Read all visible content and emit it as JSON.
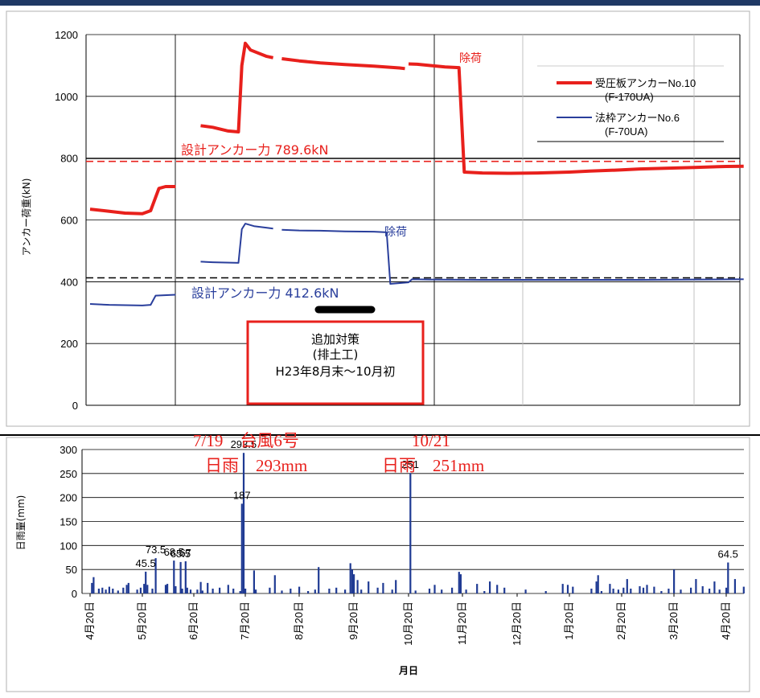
{
  "chart_data": [
    {
      "type": "line",
      "title": "",
      "xlabel": "",
      "ylabel": "アンカー荷重(kN)",
      "ylim": [
        0,
        1200
      ],
      "yticks": [
        0,
        200,
        400,
        600,
        800,
        1000,
        1200
      ],
      "grid": true,
      "legend_position": "top-right",
      "series": [
        {
          "name": "受圧板アンカーNo.10",
          "name_sub": "(F-170UA)",
          "color": "#e8201c",
          "segments": [
            [
              [
                "04-20",
                635
              ],
              [
                "05-01",
                628
              ],
              [
                "05-10",
                622
              ],
              [
                "05-20",
                620
              ],
              [
                "05-25",
                630
              ],
              [
                "05-30",
                702
              ],
              [
                "06-03",
                708
              ],
              [
                "06-09",
                708
              ]
            ],
            [
              [
                "06-24",
                905
              ],
              [
                "07-01",
                900
              ],
              [
                "07-10",
                888
              ],
              [
                "07-16",
                885
              ],
              [
                "07-18",
                1100
              ],
              [
                "07-20",
                1172
              ],
              [
                "07-23",
                1150
              ],
              [
                "08-01",
                1130
              ],
              [
                "08-05",
                1125
              ]
            ],
            [
              [
                "08-10",
                1122
              ],
              [
                "08-20",
                1115
              ],
              [
                "09-01",
                1108
              ],
              [
                "09-15",
                1103
              ],
              [
                "10-01",
                1098
              ],
              [
                "10-15",
                1092
              ],
              [
                "10-18",
                1090
              ]
            ],
            [
              [
                "10-20",
                1105
              ],
              [
                "10-25",
                1104
              ],
              [
                "11-01",
                1100
              ],
              [
                "11-10",
                1095
              ],
              [
                "11-18",
                1093
              ],
              [
                "11-21",
                755
              ],
              [
                "12-01",
                752
              ],
              [
                "12-15",
                751
              ],
              [
                "01-01",
                752
              ],
              [
                "01-20",
                755
              ],
              [
                "02-01",
                758
              ],
              [
                "02-20",
                762
              ],
              [
                "03-01",
                765
              ],
              [
                "03-15",
                767
              ],
              [
                "04-01",
                770
              ],
              [
                "04-20",
                773
              ],
              [
                "04-30",
                774
              ]
            ]
          ]
        },
        {
          "name": "法枠アンカーNo.6",
          "name_sub": "(F-70UA)",
          "color": "#2a3f9c",
          "segments": [
            [
              [
                "04-20",
                328
              ],
              [
                "05-01",
                325
              ],
              [
                "05-20",
                323
              ],
              [
                "05-25",
                325
              ],
              [
                "05-28",
                355
              ],
              [
                "06-09",
                358
              ]
            ],
            [
              [
                "06-24",
                465
              ],
              [
                "07-01",
                463
              ],
              [
                "07-16",
                461
              ],
              [
                "07-18",
                570
              ],
              [
                "07-20",
                588
              ],
              [
                "07-25",
                580
              ],
              [
                "08-01",
                575
              ],
              [
                "08-05",
                572
              ]
            ],
            [
              [
                "08-10",
                568
              ],
              [
                "08-20",
                566
              ],
              [
                "09-01",
                565
              ],
              [
                "09-15",
                563
              ],
              [
                "10-01",
                562
              ],
              [
                "10-08",
                560
              ],
              [
                "10-10",
                393
              ],
              [
                "10-20",
                398
              ],
              [
                "10-22",
                408
              ],
              [
                "11-01",
                407
              ],
              [
                "12-01",
                406
              ],
              [
                "01-01",
                406
              ],
              [
                "02-01",
                406
              ],
              [
                "03-01",
                406
              ],
              [
                "04-01",
                407
              ],
              [
                "04-30",
                408
              ]
            ]
          ]
        }
      ],
      "reference_lines": [
        {
          "label": "設計アンカー力 789.6kN",
          "value": 789.6,
          "color": "#e8201c"
        },
        {
          "label": "設計アンカー力 412.6kN",
          "value": 412.6,
          "color": "#2a3f9c"
        }
      ],
      "annotations": {
        "unload_red": "除荷",
        "unload_blue": "除荷",
        "countermeasure": [
          "追加対策",
          "(排土工)",
          "H23年8月末～10月初"
        ]
      }
    },
    {
      "type": "bar",
      "title": "",
      "xlabel": "月日",
      "ylabel": "日雨量(mm)",
      "ylim": [
        0,
        300
      ],
      "yticks": [
        0,
        50,
        100,
        150,
        200,
        250,
        300
      ],
      "grid": true,
      "x_tick_labels": [
        "4月20日",
        "5月20日",
        "6月20日",
        "7月20日",
        "8月20日",
        "9月20日",
        "10月20日",
        "11月20日",
        "12月20日",
        "1月20日",
        "2月20日",
        "3月20日",
        "4月20日"
      ],
      "bars": [
        [
          "04-21",
          22
        ],
        [
          "04-22",
          34
        ],
        [
          "04-25",
          10
        ],
        [
          "04-27",
          12
        ],
        [
          "04-29",
          8
        ],
        [
          "05-01",
          14
        ],
        [
          "05-03",
          10
        ],
        [
          "05-06",
          6
        ],
        [
          "05-09",
          12
        ],
        [
          "05-11",
          18
        ],
        [
          "05-12",
          22
        ],
        [
          "05-17",
          8
        ],
        [
          "05-19",
          12
        ],
        [
          "05-21",
          20
        ],
        [
          "05-22",
          45.5
        ],
        [
          "05-23",
          18
        ],
        [
          "05-26",
          10
        ],
        [
          "05-28",
          73.5
        ],
        [
          "06-03",
          18
        ],
        [
          "06-04",
          20
        ],
        [
          "06-08",
          68.5
        ],
        [
          "06-09",
          15
        ],
        [
          "06-12",
          65.5
        ],
        [
          "06-13",
          10
        ],
        [
          "06-15",
          67
        ],
        [
          "06-16",
          12
        ],
        [
          "06-18",
          8
        ],
        [
          "06-22",
          8
        ],
        [
          "06-24",
          24
        ],
        [
          "06-25",
          6
        ],
        [
          "06-28",
          22
        ],
        [
          "07-01",
          10
        ],
        [
          "07-05",
          12
        ],
        [
          "07-10",
          18
        ],
        [
          "07-13",
          10
        ],
        [
          "07-17",
          5
        ],
        [
          "07-18",
          187
        ],
        [
          "07-19",
          293
        ],
        [
          "07-20",
          10
        ],
        [
          "07-25",
          48
        ],
        [
          "07-26",
          8
        ],
        [
          "08-03",
          12
        ],
        [
          "08-06",
          38
        ],
        [
          "08-10",
          6
        ],
        [
          "08-15",
          10
        ],
        [
          "08-20",
          14
        ],
        [
          "08-25",
          5
        ],
        [
          "08-29",
          8
        ],
        [
          "08-31",
          55
        ],
        [
          "09-06",
          10
        ],
        [
          "09-10",
          12
        ],
        [
          "09-15",
          8
        ],
        [
          "09-18",
          63
        ],
        [
          "09-19",
          50
        ],
        [
          "09-20",
          40
        ],
        [
          "09-22",
          28
        ],
        [
          "09-24",
          8
        ],
        [
          "09-28",
          25
        ],
        [
          "10-03",
          12
        ],
        [
          "10-06",
          22
        ],
        [
          "10-11",
          8
        ],
        [
          "10-13",
          28
        ],
        [
          "10-21",
          251
        ],
        [
          "10-24",
          6
        ],
        [
          "11-01",
          10
        ],
        [
          "11-04",
          18
        ],
        [
          "11-08",
          8
        ],
        [
          "11-14",
          12
        ],
        [
          "11-18",
          45
        ],
        [
          "11-19",
          40
        ],
        [
          "11-22",
          8
        ],
        [
          "11-28",
          20
        ],
        [
          "12-02",
          5
        ],
        [
          "12-05",
          25
        ],
        [
          "12-09",
          18
        ],
        [
          "12-13",
          12
        ],
        [
          "12-25",
          8
        ],
        [
          "01-06",
          5
        ],
        [
          "01-16",
          20
        ],
        [
          "01-19",
          18
        ],
        [
          "01-22",
          14
        ],
        [
          "02-02",
          10
        ],
        [
          "02-05",
          25
        ],
        [
          "02-06",
          38
        ],
        [
          "02-08",
          5
        ],
        [
          "02-13",
          20
        ],
        [
          "02-15",
          10
        ],
        [
          "02-18",
          8
        ],
        [
          "02-21",
          12
        ],
        [
          "02-23",
          30
        ],
        [
          "02-25",
          10
        ],
        [
          "03-01",
          15
        ],
        [
          "03-03",
          12
        ],
        [
          "03-05",
          18
        ],
        [
          "03-09",
          14
        ],
        [
          "03-13",
          5
        ],
        [
          "03-17",
          10
        ],
        [
          "03-20",
          50
        ],
        [
          "03-24",
          8
        ],
        [
          "03-30",
          12
        ],
        [
          "04-02",
          30
        ],
        [
          "04-06",
          15
        ],
        [
          "04-10",
          10
        ],
        [
          "04-13",
          25
        ],
        [
          "04-16",
          8
        ],
        [
          "04-20",
          12
        ],
        [
          "04-21",
          64.5
        ],
        [
          "04-25",
          30
        ],
        [
          "04-30",
          14
        ]
      ],
      "data_labels": [
        {
          "date": "05-22",
          "text": "45.5"
        },
        {
          "date": "05-28",
          "text": "73.5"
        },
        {
          "date": "06-08",
          "text": "68.5"
        },
        {
          "date": "06-12",
          "text": "65.5"
        },
        {
          "date": "06-15",
          "text": "67"
        },
        {
          "date": "07-18",
          "text": "187"
        },
        {
          "date": "07-19",
          "text": "293.5"
        },
        {
          "date": "10-21",
          "text": "251"
        },
        {
          "date": "04-21",
          "text": "64.5"
        }
      ],
      "annotations": {
        "typhoon_line1": "7/19　台風6号",
        "typhoon_line2": "日雨　293mm",
        "oct_line1": "10/21",
        "oct_line2": "日雨　251mm"
      }
    }
  ]
}
